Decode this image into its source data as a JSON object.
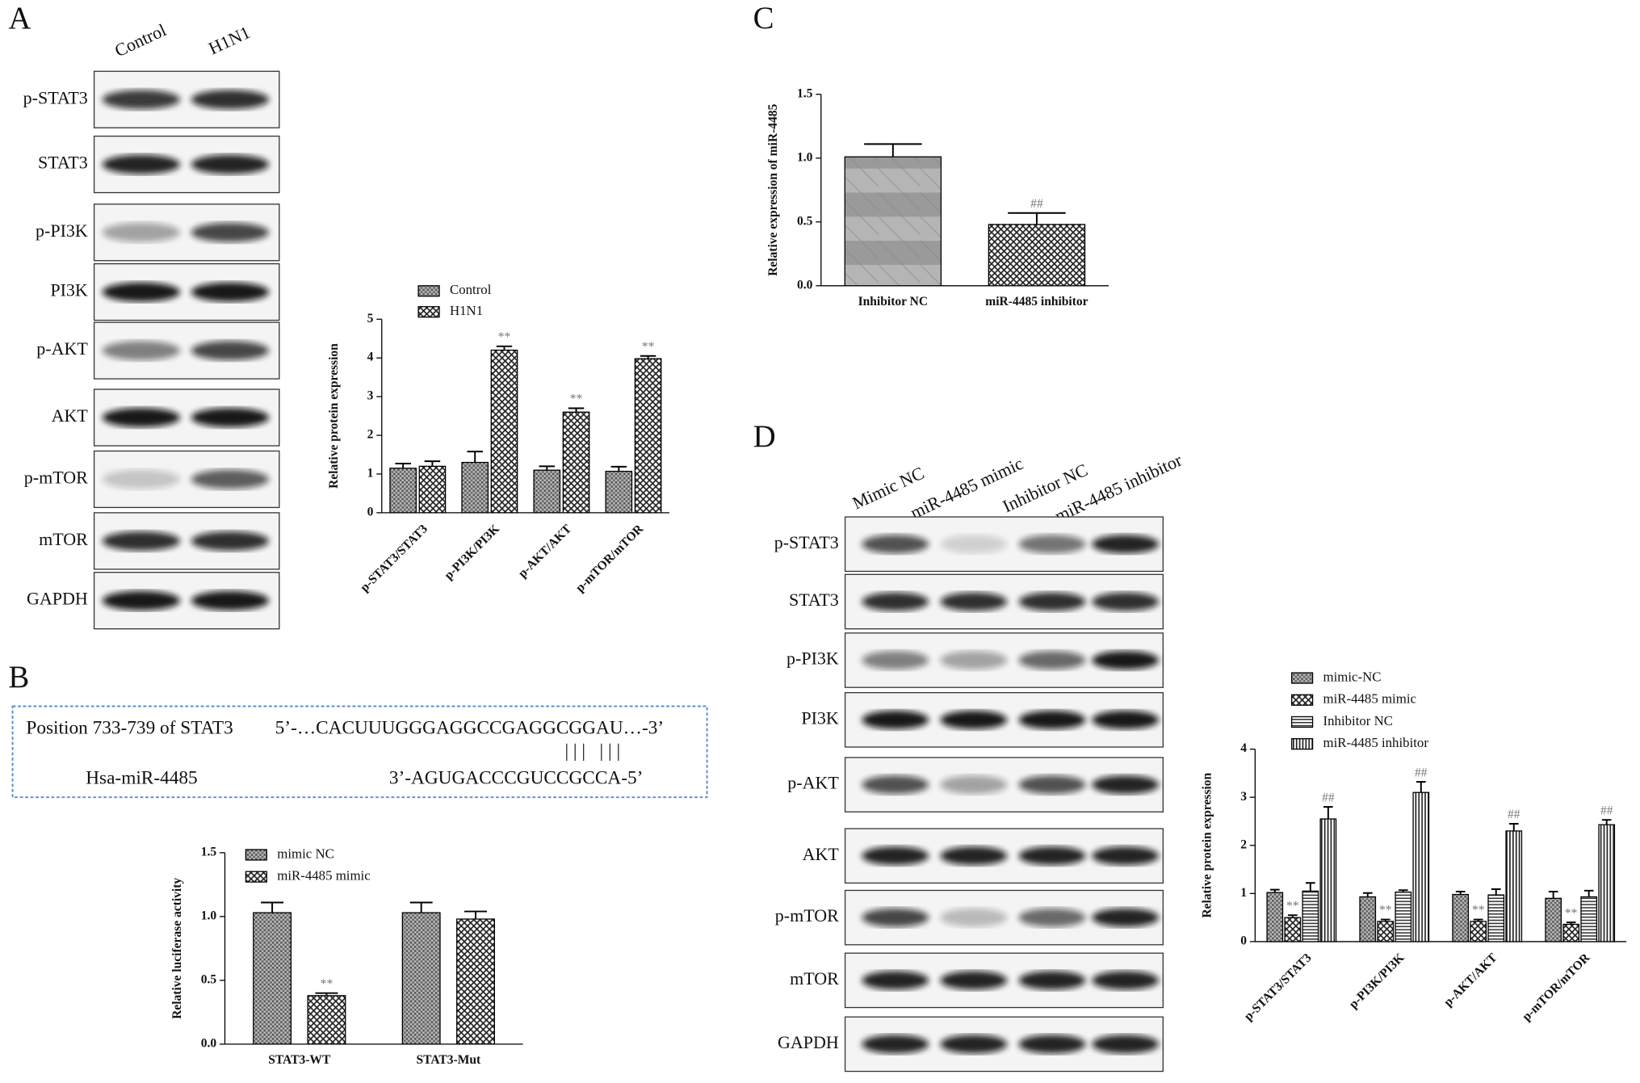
{
  "panel_labels": [
    "A",
    "B",
    "C",
    "D"
  ],
  "blot_a": {
    "lanes": [
      "Control",
      "H1N1"
    ],
    "rows": [
      "p-STAT3",
      "STAT3",
      "p-PI3K",
      "PI3K",
      "p-AKT",
      "AKT",
      "p-mTOR",
      "mTOR",
      "GAPDH"
    ]
  },
  "blot_d": {
    "lanes": [
      "Mimic NC",
      "miR-4485 mimic",
      "Inhibitor NC",
      "miR-4485 inhibitor"
    ],
    "rows": [
      "p-STAT3",
      "STAT3",
      "p-PI3K",
      "PI3K",
      "p-AKT",
      "AKT",
      "p-mTOR",
      "mTOR",
      "GAPDH"
    ]
  },
  "sequence": {
    "target_label": "Position 733-739 of STAT3",
    "target_seq": "5’-…CACUUUGGGAGGCCGAGGCGGAU…-3’",
    "pairing": "| | |   | | |",
    "mirna_label": "Hsa-miR-4485",
    "mirna_seq": "3’-AGUGACCCGUCCGCCA-5’"
  },
  "chart_data": [
    {
      "type": "bar",
      "y_label": "Relative protein expression",
      "categories": [
        "p-STAT3/STAT3",
        "p-PI3K/PI3K",
        "p-AKT/AKT",
        "p-mTOR/mTOR"
      ],
      "series": [
        {
          "name": "Control",
          "color": "#888888",
          "pattern": "dots",
          "values": [
            1.15,
            1.3,
            1.1,
            1.07
          ],
          "errors": [
            0.12,
            0.28,
            0.1,
            0.12
          ],
          "significance": [
            null,
            null,
            null,
            null
          ]
        },
        {
          "name": "H1N1",
          "color": "#555555",
          "pattern": "cross",
          "values": [
            1.2,
            4.2,
            2.6,
            3.98
          ],
          "errors": [
            0.13,
            0.1,
            0.1,
            0.07
          ],
          "significance": [
            null,
            "**",
            "**",
            "**"
          ]
        }
      ],
      "ylim": [
        0,
        5
      ],
      "yticks": [
        0,
        1,
        2,
        3,
        4,
        5
      ]
    },
    {
      "type": "bar",
      "y_label": "Relative luciferase activity",
      "categories": [
        "STAT3-WT",
        "STAT3-Mut"
      ],
      "series": [
        {
          "name": "mimic NC",
          "color": "#888888",
          "pattern": "dots",
          "values": [
            1.03,
            1.03
          ],
          "errors": [
            0.08,
            0.08
          ],
          "significance": [
            null,
            null
          ]
        },
        {
          "name": "miR-4485 mimic",
          "color": "#555555",
          "pattern": "cross",
          "values": [
            0.38,
            0.98
          ],
          "errors": [
            0.02,
            0.06
          ],
          "significance": [
            "**",
            null
          ]
        }
      ],
      "ylim": [
        0,
        1.5
      ],
      "yticks": [
        {
          "value": 0,
          "label": "0.0"
        },
        {
          "value": 0.5,
          "label": "0.5"
        },
        {
          "value": 1,
          "label": "1.0"
        },
        {
          "value": 1.5,
          "label": "1.5"
        }
      ]
    },
    {
      "type": "bar",
      "y_label": "Relative expression of miR-4485",
      "categories": [
        "Inhibitor NC",
        "miR-4485 inhibitor"
      ],
      "values": [
        1.01,
        0.48
      ],
      "errors": [
        0.1,
        0.09
      ],
      "significance": [
        null,
        "##"
      ],
      "patterns": [
        "hbands",
        "cross"
      ],
      "ylim": [
        0,
        1.5
      ],
      "yticks": [
        {
          "value": 0,
          "label": "0.0"
        },
        {
          "value": 0.5,
          "label": "0.5"
        },
        {
          "value": 1,
          "label": "1.0"
        },
        {
          "value": 1.5,
          "label": "1.5"
        }
      ]
    },
    {
      "type": "bar",
      "y_label": "Relative protein expression",
      "categories": [
        "p-STAT3/STAT3",
        "p-PI3K/PI3K",
        "p-AKT/AKT",
        "p-mTOR/mTOR"
      ],
      "series": [
        {
          "name": "mimic-NC",
          "color": "#888888",
          "pattern": "dots",
          "values": [
            1.02,
            0.93,
            0.98,
            0.9
          ],
          "errors": [
            0.06,
            0.08,
            0.06,
            0.14
          ],
          "significance": [
            null,
            null,
            null,
            null
          ]
        },
        {
          "name": "miR-4485 mimic",
          "color": "#555555",
          "pattern": "cross",
          "values": [
            0.5,
            0.42,
            0.42,
            0.36
          ],
          "errors": [
            0.05,
            0.04,
            0.04,
            0.04
          ],
          "significance": [
            "**",
            "**",
            "**",
            "**"
          ]
        },
        {
          "name": "Inhibitor NC",
          "color": "#777777",
          "pattern": "hlines",
          "values": [
            1.05,
            1.03,
            0.97,
            0.93
          ],
          "errors": [
            0.17,
            0.04,
            0.12,
            0.13
          ],
          "significance": [
            null,
            null,
            null,
            null
          ]
        },
        {
          "name": "miR-4485 inhibitor",
          "color": "#444444",
          "pattern": "vlines",
          "values": [
            2.55,
            3.1,
            2.3,
            2.43
          ],
          "errors": [
            0.25,
            0.22,
            0.15,
            0.1
          ],
          "significance": [
            "##",
            "##",
            "##",
            "##"
          ]
        }
      ],
      "ylim": [
        0,
        4
      ],
      "yticks": [
        0,
        1,
        2,
        3,
        4
      ]
    }
  ]
}
